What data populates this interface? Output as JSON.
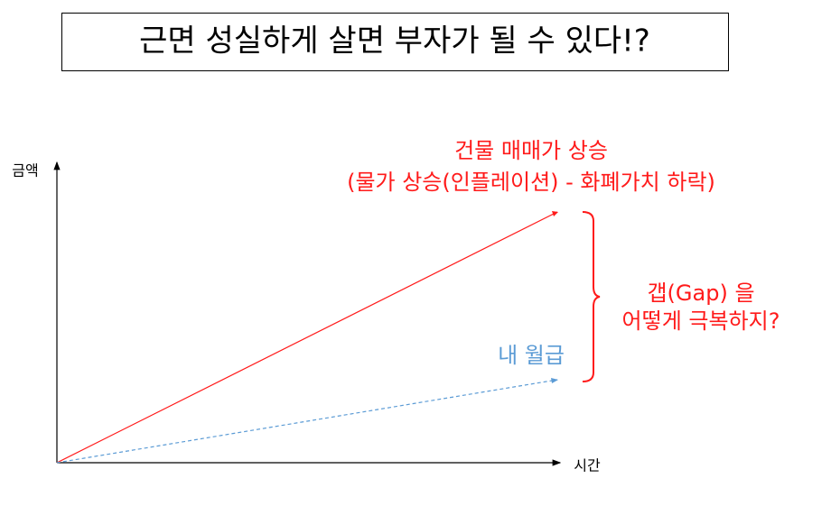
{
  "title": "근면 성실하게 살면 부자가 될 수 있다!?",
  "axes": {
    "y_label": "금액",
    "x_label": "시간"
  },
  "lines": {
    "asset": {
      "label": [
        "건물 매매가 상승",
        "(물가 상승(인플레이션) - 화폐가치 하락)"
      ]
    },
    "salary": {
      "label": "내 월급"
    }
  },
  "gap": {
    "label": [
      "갭(Gap) 을",
      "어떻게 극복하지?"
    ]
  }
}
